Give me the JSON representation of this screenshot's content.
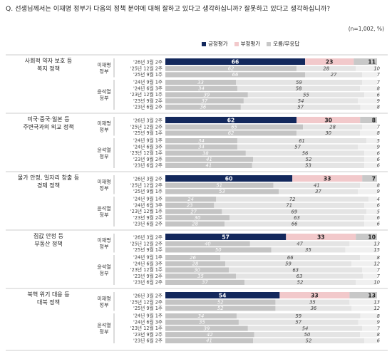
{
  "question": "Q. 선생님께서는 이재명 정부가 다음의 정책 분야에 대해 잘하고 있다고 생각하십니까? 잘못하고 있다고 생각하십니까?",
  "unit": "(n=1,002, %)",
  "colors": {
    "positive": "#13285c",
    "negative": "#f2c9cb",
    "dontknow": "#c8c8c8",
    "negative_label": "#333333"
  },
  "chart_data": {
    "type": "bar",
    "stacked": true,
    "legend": [
      "긍정평가",
      "부정평가",
      "모름/무응답"
    ],
    "legend_position": "top-right",
    "groups": [
      {
        "title": [
          "사회적 약자 보호 등",
          "복지 정책"
        ],
        "gov_new": [
          "이재명",
          "정부"
        ],
        "gov_old": [
          "윤석열",
          "정부"
        ],
        "rows": [
          {
            "period": "'26년 3월 2주",
            "values": [
              66,
              23,
              11
            ]
          },
          {
            "period": "'25년 12월 2주",
            "values": [
              62,
              28,
              10
            ]
          },
          {
            "period": "'25년 9월 1주",
            "values": [
              66,
              27,
              7
            ]
          },
          {
            "period": "'24년 9월 1주",
            "values": [
              33,
              59,
              7
            ]
          },
          {
            "period": "'24년 6월 3주",
            "values": [
              34,
              58,
              8
            ]
          },
          {
            "period": "'23년 12월 1주",
            "values": [
              39,
              55,
              6
            ]
          },
          {
            "period": "'23년 9월 2주",
            "values": [
              37,
              54,
              9
            ]
          },
          {
            "period": "'23년 6월 2주",
            "values": [
              36,
              57,
              8
            ]
          }
        ]
      },
      {
        "title": [
          "미국·중국·일본 등",
          "주변국과의 외교 정책"
        ],
        "gov_new": [
          "이재명",
          "정부"
        ],
        "gov_old": [
          "윤석열",
          "정부"
        ],
        "rows": [
          {
            "period": "'26년 3월 2주",
            "values": [
              62,
              30,
              8
            ]
          },
          {
            "period": "'25년 12월 2주",
            "values": [
              65,
              28,
              7
            ]
          },
          {
            "period": "'25년 9월 1주",
            "values": [
              62,
              30,
              8
            ]
          },
          {
            "period": "'24년 9월 1주",
            "values": [
              34,
              61,
              5
            ]
          },
          {
            "period": "'24년 6월 3주",
            "values": [
              34,
              57,
              9
            ]
          },
          {
            "period": "'23년 12월 1주",
            "values": [
              38,
              56,
              6
            ]
          },
          {
            "period": "'23년 9월 2주",
            "values": [
              41,
              52,
              6
            ]
          },
          {
            "period": "'23년 6월 2주",
            "values": [
              41,
              53,
              6
            ]
          }
        ]
      },
      {
        "title": [
          "물가 안정, 일자리 창출 등",
          "경제 정책"
        ],
        "gov_new": [
          "이재명",
          "정부"
        ],
        "gov_old": [
          "윤석열",
          "정부"
        ],
        "rows": [
          {
            "period": "'26년 3월 2주",
            "values": [
              60,
              33,
              7
            ]
          },
          {
            "period": "'25년 12월 2주",
            "values": [
              51,
              41,
              8
            ]
          },
          {
            "period": "'25년 9월 1주",
            "values": [
              53,
              37,
              9
            ]
          },
          {
            "period": "'24년 9월 1주",
            "values": [
              24,
              72,
              4
            ]
          },
          {
            "period": "'24년 6월 3주",
            "values": [
              23,
              71,
              6
            ]
          },
          {
            "period": "'23년 12월 1주",
            "values": [
              27,
              69,
              5
            ]
          },
          {
            "period": "'23년 9월 2주",
            "values": [
              30,
              63,
              6
            ]
          },
          {
            "period": "'23년 6월 2주",
            "values": [
              28,
              66,
              6
            ]
          }
        ]
      },
      {
        "title": [
          "집값 안정 등",
          "부동산 정책"
        ],
        "gov_new": [
          "이재명",
          "정부"
        ],
        "gov_old": [
          "윤석열",
          "정부"
        ],
        "rows": [
          {
            "period": "'26년 3월 2주",
            "values": [
              57,
              33,
              10
            ]
          },
          {
            "period": "'25년 12월 2주",
            "values": [
              40,
              47,
              13
            ]
          },
          {
            "period": "'25년 9월 1주",
            "values": [
              50,
              35,
              15
            ]
          },
          {
            "period": "'24년 9월 1주",
            "values": [
              26,
              66,
              8
            ]
          },
          {
            "period": "'24년 6월 3주",
            "values": [
              28,
              59,
              12
            ]
          },
          {
            "period": "'23년 12월 1주",
            "values": [
              30,
              63,
              7
            ]
          },
          {
            "period": "'23년 9월 2주",
            "values": [
              35,
              63,
              7
            ]
          },
          {
            "period": "'23년 6월 2주",
            "values": [
              37,
              52,
              10
            ]
          }
        ]
      },
      {
        "title": [
          "북핵 위기 대응 등",
          "대북 정책"
        ],
        "gov_new": [
          "이재명",
          "정부"
        ],
        "gov_old": [
          "윤석열",
          "정부"
        ],
        "rows": [
          {
            "period": "'26년 3월 2주",
            "values": [
              54,
              33,
              13
            ]
          },
          {
            "period": "'25년 12월 2주",
            "values": [
              52,
              35,
              13
            ]
          },
          {
            "period": "'25년 9월 1주",
            "values": [
              52,
              36,
              12
            ]
          },
          {
            "period": "'24년 9월 1주",
            "values": [
              34,
              59,
              8
            ]
          },
          {
            "period": "'24년 6월 3주",
            "values": [
              35,
              57,
              9
            ]
          },
          {
            "period": "'23년 12월 1주",
            "values": [
              39,
              54,
              7
            ]
          },
          {
            "period": "'23년 9월 2주",
            "values": [
              42,
              50,
              8
            ]
          },
          {
            "period": "'23년 6월 2주",
            "values": [
              41,
              52,
              6
            ]
          }
        ]
      }
    ]
  }
}
